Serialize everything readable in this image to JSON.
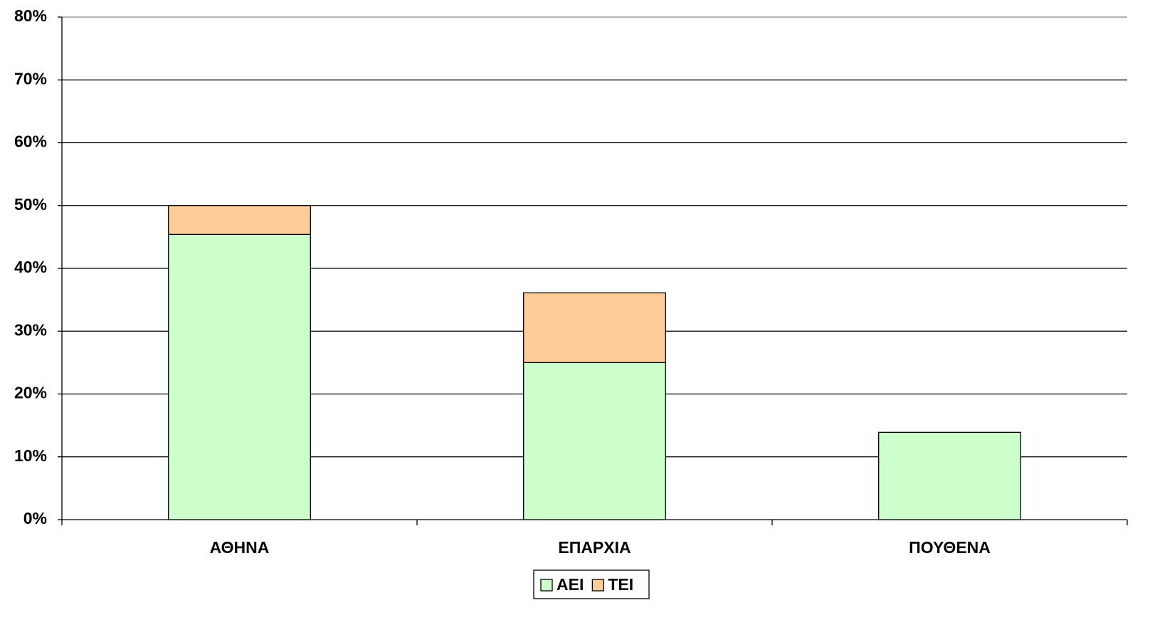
{
  "chart_data": {
    "type": "stacked_bar",
    "categories": [
      "ΑΘΗΝΑ",
      "ΕΠΑΡΧΙΑ",
      "ΠΟΥΘΕΝΑ"
    ],
    "series": [
      {
        "name": "ΑΕΙ",
        "color": "#ccffcc",
        "values": [
          45.4,
          25.0,
          13.9
        ]
      },
      {
        "name": "ΤΕΙ",
        "color": "#ffcc99",
        "values": [
          4.6,
          11.1,
          0
        ]
      }
    ],
    "ylim": [
      0,
      80
    ],
    "yticks": [
      {
        "value": 0,
        "label": "0%"
      },
      {
        "value": 10,
        "label": "10%"
      },
      {
        "value": 20,
        "label": "20%"
      },
      {
        "value": 30,
        "label": "30%"
      },
      {
        "value": 40,
        "label": "40%"
      },
      {
        "value": 50,
        "label": "50%"
      },
      {
        "value": 60,
        "label": "60%"
      },
      {
        "value": 70,
        "label": "70%"
      },
      {
        "value": 80,
        "label": "80%"
      }
    ],
    "grid": true,
    "legend": "bottom"
  }
}
